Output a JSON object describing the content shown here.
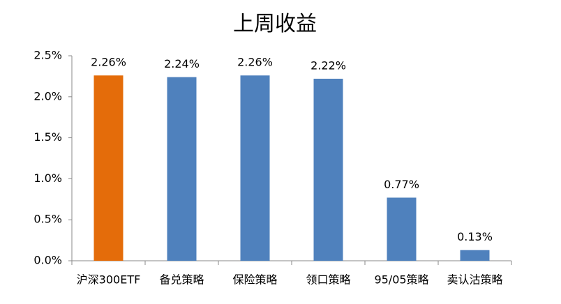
{
  "chart_data": {
    "type": "bar",
    "title": "上周收益",
    "categories": [
      "沪深300ETF",
      "备兑策略",
      "保险策略",
      "领口策略",
      "95/05策略",
      "卖认沽策略"
    ],
    "values": [
      2.26,
      2.24,
      2.26,
      2.22,
      0.77,
      0.13
    ],
    "value_labels": [
      "2.26%",
      "2.24%",
      "2.26%",
      "2.22%",
      "0.77%",
      "0.13%"
    ],
    "colors": [
      "#e46c0a",
      "#4f81bd",
      "#4f81bd",
      "#4f81bd",
      "#4f81bd",
      "#4f81bd"
    ],
    "ylim": [
      0,
      2.5
    ],
    "yticks": [
      {
        "value": 0,
        "label": "0.0%"
      },
      {
        "value": 0.5,
        "label": "0.5%"
      },
      {
        "value": 1,
        "label": "1.0%"
      },
      {
        "value": 1.5,
        "label": "1.5%"
      },
      {
        "value": 2,
        "label": "2.0%"
      },
      {
        "value": 2.5,
        "label": "2.5%"
      }
    ],
    "grid": false
  }
}
